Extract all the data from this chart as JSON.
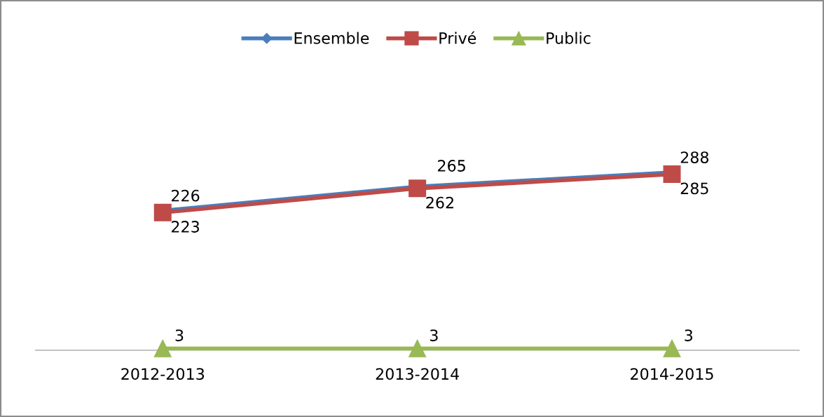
{
  "chart_data": {
    "type": "line",
    "categories": [
      "2012-2013",
      "2013-2014",
      "2014-2015"
    ],
    "series": [
      {
        "name": "Ensemble",
        "color": "#4a7ebb",
        "marker": "diamond",
        "values": [
          226,
          265,
          288
        ]
      },
      {
        "name": "Privé",
        "color": "#be4b48",
        "marker": "square",
        "values": [
          223,
          262,
          285
        ]
      },
      {
        "name": "Public",
        "color": "#98b954",
        "marker": "triangle",
        "values": [
          3,
          3,
          3
        ]
      }
    ],
    "data_labels": true,
    "legend": "top",
    "grid": false,
    "line_style": "solid"
  }
}
